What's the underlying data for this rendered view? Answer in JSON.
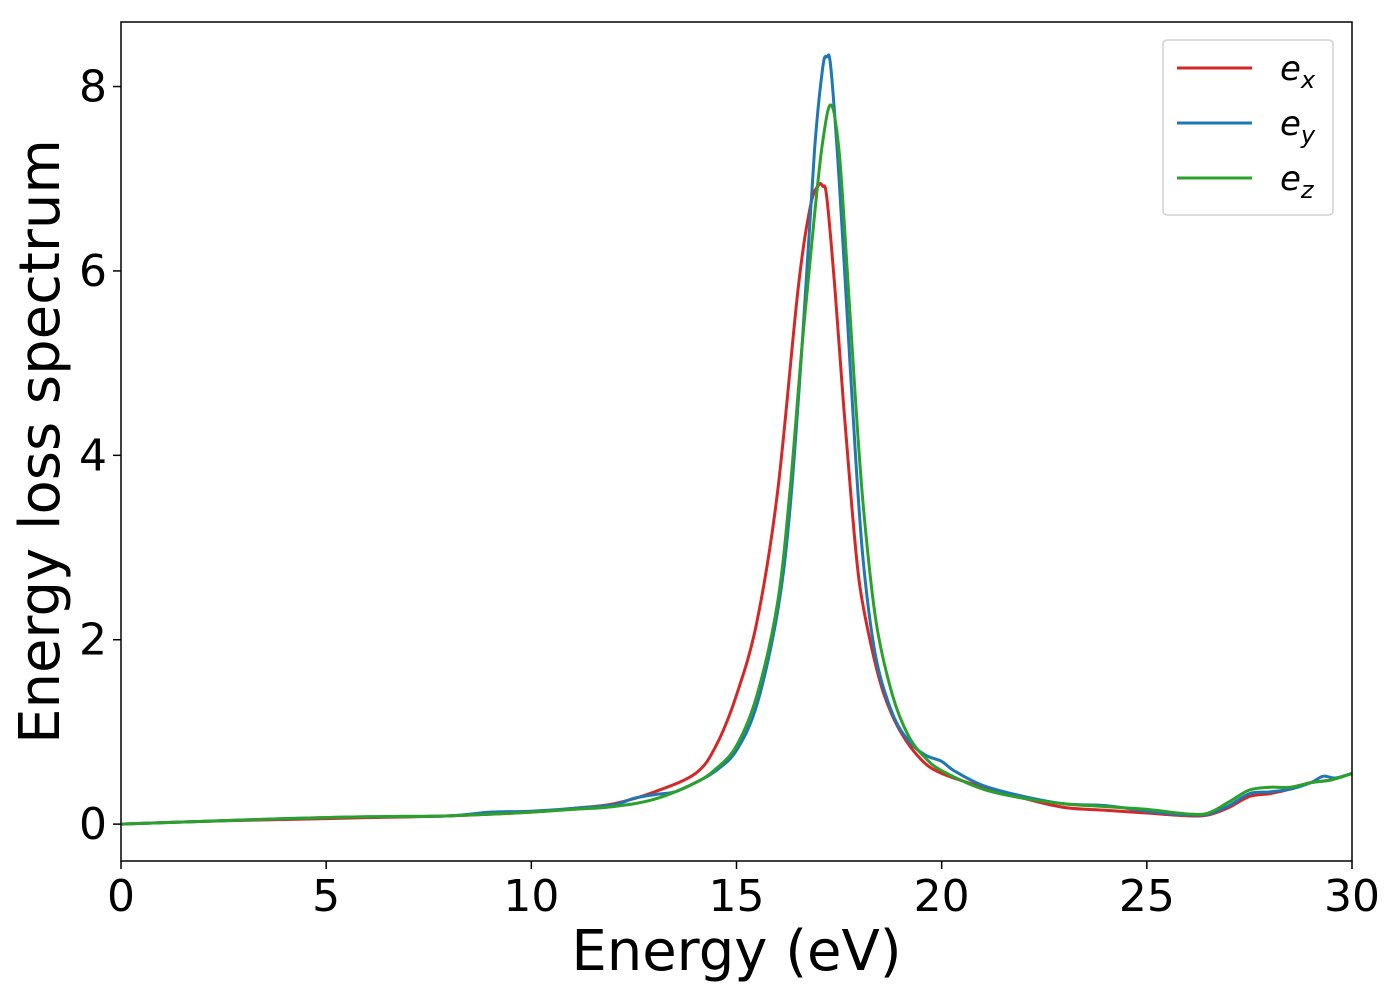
{
  "chart_data": {
    "type": "line",
    "title": "",
    "xlabel": "Energy (eV)",
    "ylabel": "Energy loss spectrum",
    "xlim": [
      0,
      30
    ],
    "ylim": [
      -0.4,
      8.7
    ],
    "xticks": [
      0,
      5,
      10,
      15,
      20,
      25,
      30
    ],
    "yticks": [
      0,
      2,
      4,
      6,
      8
    ],
    "xtick_labels": [
      "0",
      "5",
      "10",
      "15",
      "20",
      "25",
      "30"
    ],
    "ytick_labels": [
      "0",
      "2",
      "4",
      "6",
      "8"
    ],
    "grid": false,
    "legend_position": "top-right",
    "series": [
      {
        "name": "e",
        "subscript": "x",
        "color": "#d62728",
        "x": [
          0,
          2,
          4,
          6,
          8,
          10,
          11,
          12,
          13,
          14,
          14.5,
          15,
          15.5,
          16,
          16.5,
          16.8,
          17.0,
          17.1,
          17.2,
          17.4,
          17.6,
          17.8,
          18.0,
          18.3,
          18.6,
          19.0,
          19.5,
          20,
          21,
          22,
          23,
          24,
          25,
          26,
          26.5,
          27,
          27.5,
          28,
          28.5,
          29,
          29.5,
          30
        ],
        "y": [
          0.0,
          0.03,
          0.05,
          0.07,
          0.09,
          0.13,
          0.17,
          0.22,
          0.35,
          0.55,
          0.85,
          1.4,
          2.2,
          3.6,
          5.8,
          6.7,
          6.93,
          6.92,
          6.8,
          5.8,
          4.6,
          3.5,
          2.6,
          1.9,
          1.4,
          1.0,
          0.7,
          0.55,
          0.4,
          0.28,
          0.18,
          0.15,
          0.12,
          0.09,
          0.1,
          0.18,
          0.3,
          0.33,
          0.38,
          0.45,
          0.48,
          0.55
        ]
      },
      {
        "name": "e",
        "subscript": "y",
        "color": "#1f77b4",
        "x": [
          0,
          2,
          4,
          6,
          8,
          9,
          10,
          11,
          12,
          12.5,
          13,
          13.5,
          14,
          14.5,
          15,
          15.5,
          16,
          16.3,
          16.6,
          16.9,
          17.1,
          17.2,
          17.3,
          17.5,
          17.7,
          17.9,
          18.1,
          18.4,
          18.8,
          19.2,
          19.6,
          20,
          20.3,
          21,
          22,
          23,
          24,
          25,
          26,
          26.5,
          27,
          27.5,
          28,
          28.5,
          29,
          29.3,
          29.6,
          30
        ],
        "y": [
          0.0,
          0.03,
          0.06,
          0.08,
          0.09,
          0.13,
          0.14,
          0.17,
          0.21,
          0.28,
          0.32,
          0.35,
          0.45,
          0.58,
          0.8,
          1.3,
          2.3,
          3.4,
          5.2,
          7.3,
          8.2,
          8.32,
          8.2,
          7.0,
          5.5,
          4.0,
          2.8,
          1.8,
          1.2,
          0.9,
          0.75,
          0.68,
          0.58,
          0.42,
          0.3,
          0.22,
          0.2,
          0.14,
          0.1,
          0.11,
          0.2,
          0.33,
          0.35,
          0.38,
          0.45,
          0.52,
          0.5,
          0.55
        ]
      },
      {
        "name": "e",
        "subscript": "z",
        "color": "#2ca02c",
        "x": [
          0,
          2,
          4,
          6,
          8,
          10,
          11,
          12,
          13,
          14,
          14.5,
          15,
          15.5,
          16,
          16.3,
          16.6,
          16.9,
          17.1,
          17.3,
          17.5,
          17.7,
          17.9,
          18.1,
          18.4,
          18.8,
          19.2,
          19.6,
          20,
          21,
          22,
          23,
          24,
          25,
          26,
          26.5,
          27,
          27.5,
          28,
          28.5,
          29,
          29.5,
          30
        ],
        "y": [
          0.0,
          0.03,
          0.06,
          0.08,
          0.09,
          0.13,
          0.16,
          0.19,
          0.27,
          0.45,
          0.6,
          0.85,
          1.4,
          2.4,
          3.6,
          5.2,
          6.6,
          7.4,
          7.8,
          7.3,
          6.0,
          4.6,
          3.4,
          2.2,
          1.4,
          0.95,
          0.72,
          0.58,
          0.38,
          0.28,
          0.22,
          0.19,
          0.16,
          0.11,
          0.12,
          0.24,
          0.37,
          0.4,
          0.4,
          0.45,
          0.48,
          0.55
        ]
      }
    ]
  }
}
